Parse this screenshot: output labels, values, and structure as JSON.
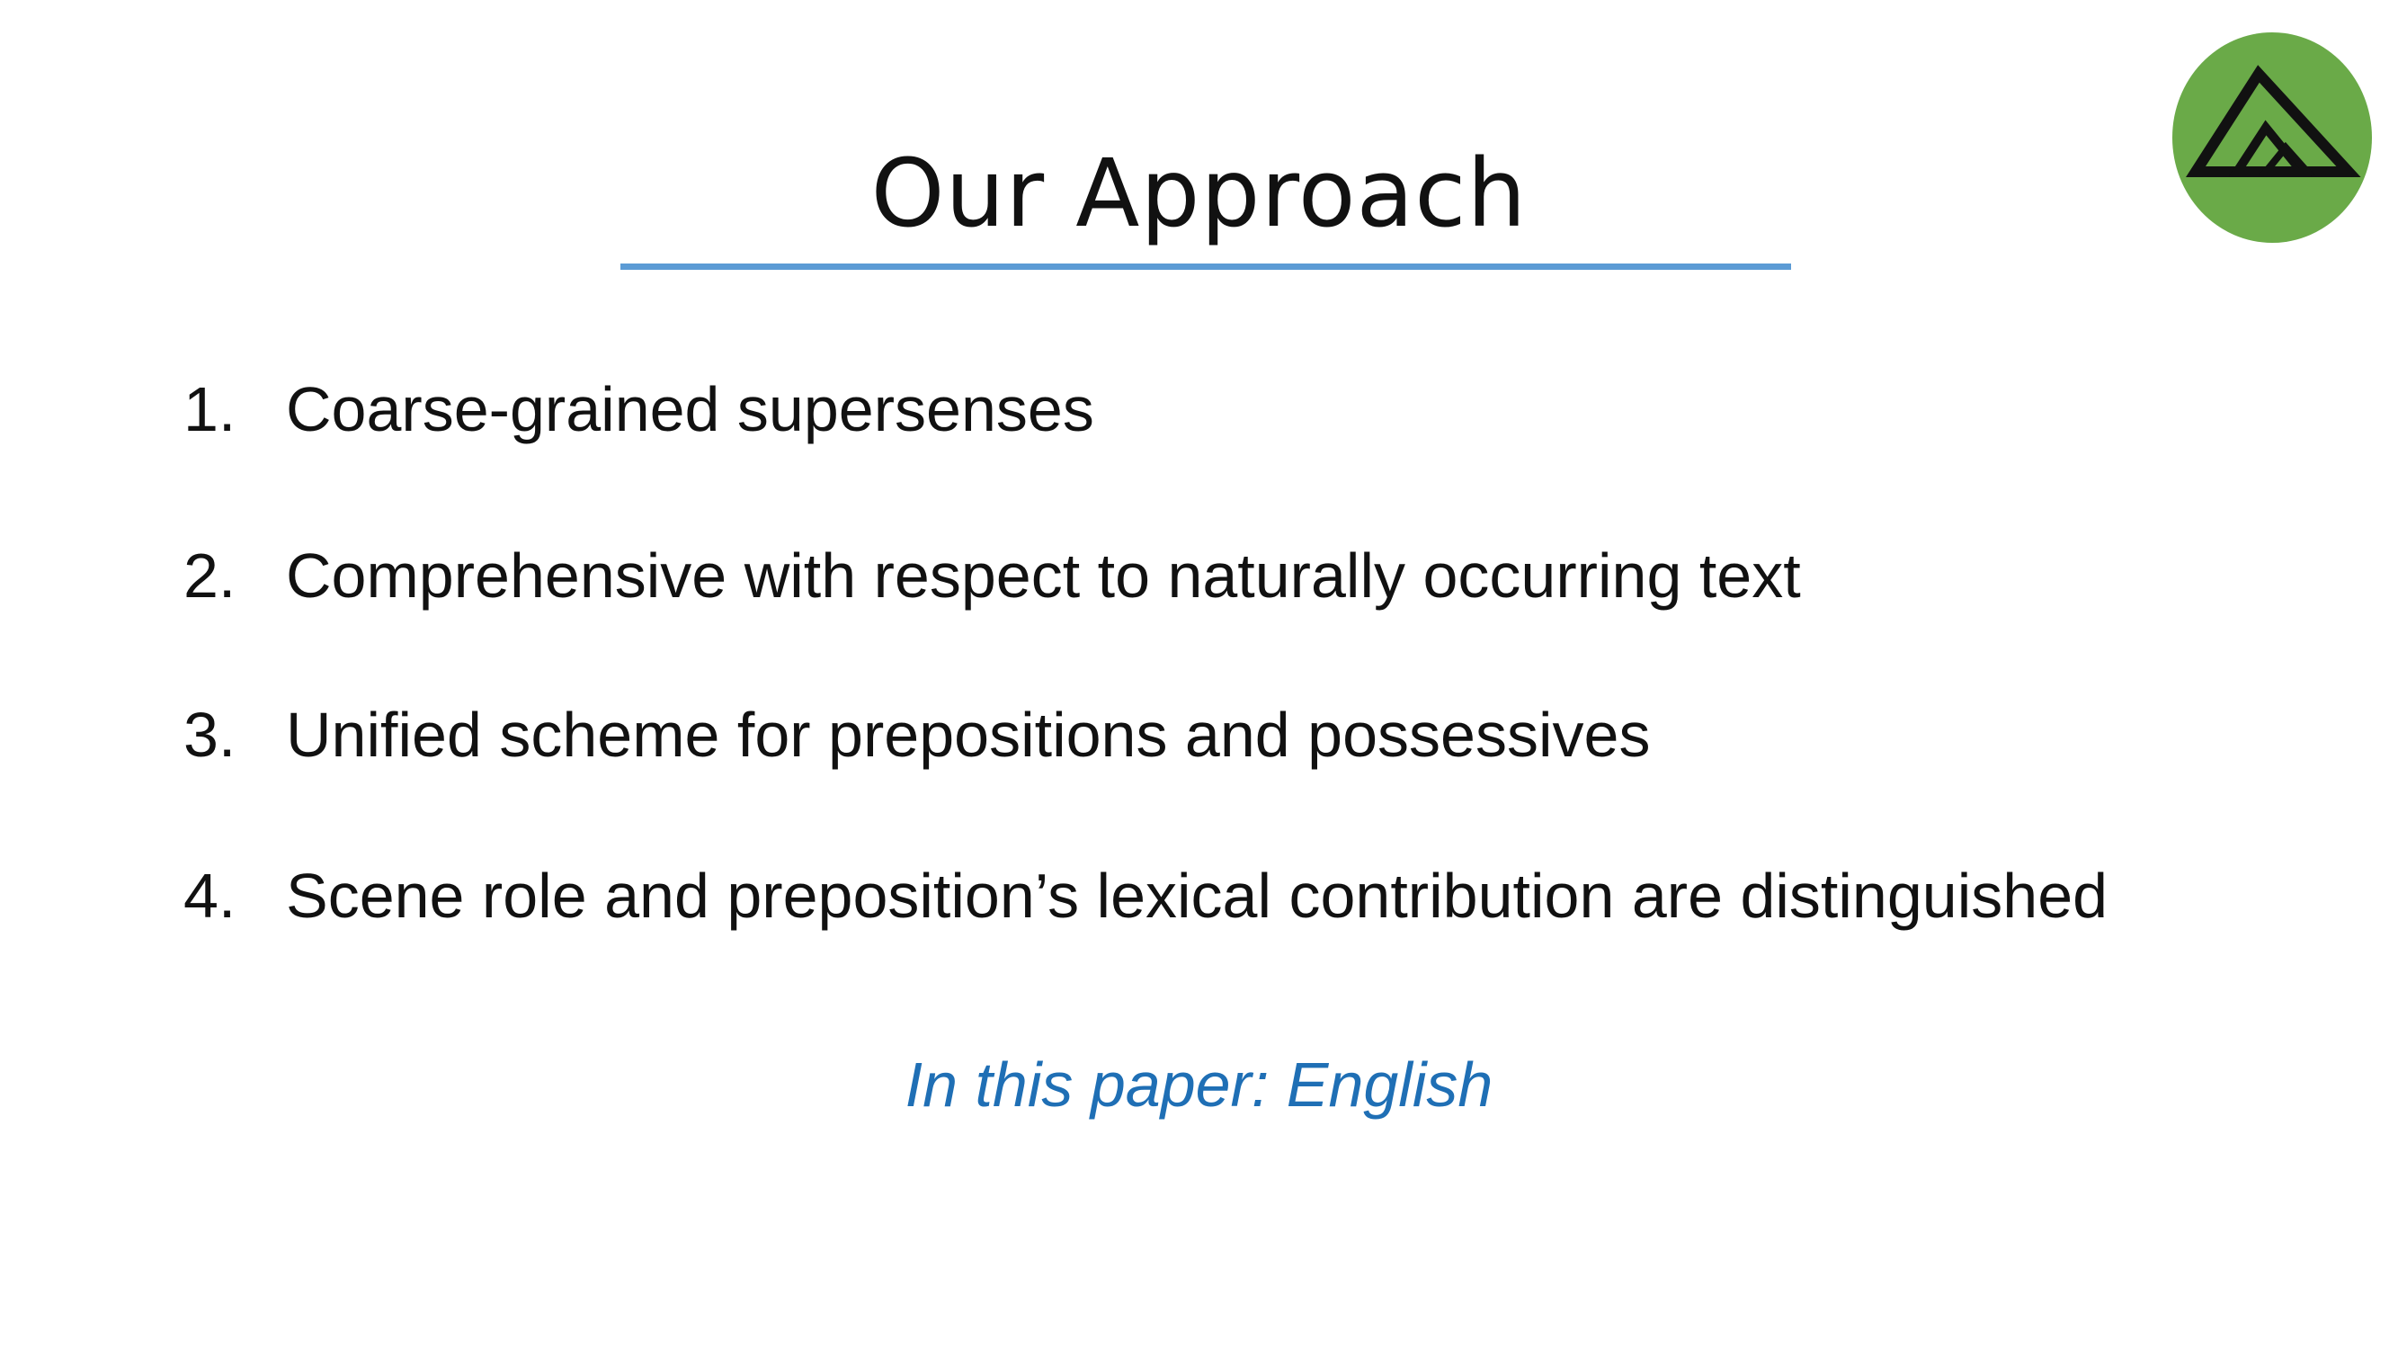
{
  "slide": {
    "title": "Our Approach",
    "items": [
      {
        "number": "1.",
        "text": "Coarse-grained supersenses"
      },
      {
        "number": "2.",
        "text": "Comprehensive with respect to naturally occurring text"
      },
      {
        "number": "3.",
        "text": "Unified scheme for prepositions and possessives"
      },
      {
        "number": "4.",
        "text": "Scene role and preposition’s lexical contribution are distinguished"
      }
    ],
    "note": "In this paper: English",
    "logo_icon": "mountain-triangle-logo-icon"
  },
  "colors": {
    "title_rule": "#5b9bd5",
    "note_text": "#1f6fb5",
    "logo_circle": "#6aaa48",
    "logo_mark": "#111111"
  }
}
